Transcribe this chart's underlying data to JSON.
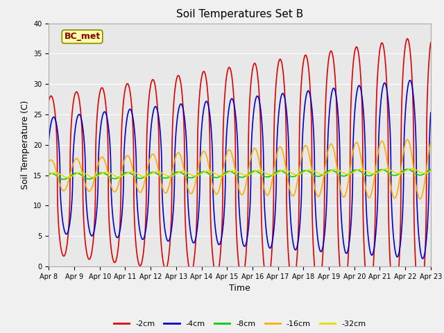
{
  "title": "Soil Temperatures Set B",
  "xlabel": "Time",
  "ylabel": "Soil Temperature (C)",
  "annotation": "BC_met",
  "xlim_start": 0,
  "xlim_end": 360,
  "ylim": [
    0,
    40
  ],
  "yticks": [
    0,
    5,
    10,
    15,
    20,
    25,
    30,
    35,
    40
  ],
  "xtick_labels": [
    "Apr 8",
    "Apr 9",
    "Apr 10",
    "Apr 11",
    "Apr 12",
    "Apr 13",
    "Apr 14",
    "Apr 15",
    "Apr 16",
    "Apr 17",
    "Apr 18",
    "Apr 19",
    "Apr 20",
    "Apr 21",
    "Apr 22",
    "Apr 23"
  ],
  "xtick_positions": [
    0,
    24,
    48,
    72,
    96,
    120,
    144,
    168,
    192,
    216,
    240,
    264,
    288,
    312,
    336,
    360
  ],
  "series": {
    "-2cm": {
      "color": "#dd0000",
      "linewidth": 1.2
    },
    "-4cm": {
      "color": "#0000cc",
      "linewidth": 1.2
    },
    "-8cm": {
      "color": "#00cc00",
      "linewidth": 1.2
    },
    "-16cm": {
      "color": "#ffaa00",
      "linewidth": 1.2
    },
    "-32cm": {
      "color": "#dddd00",
      "linewidth": 1.2
    }
  },
  "bg_color": "#e8e8e8",
  "fig_bg_color": "#f0f0f0",
  "grid_color": "#ffffff",
  "title_fontsize": 11,
  "axis_fontsize": 9,
  "tick_fontsize": 7,
  "legend_fontsize": 8
}
